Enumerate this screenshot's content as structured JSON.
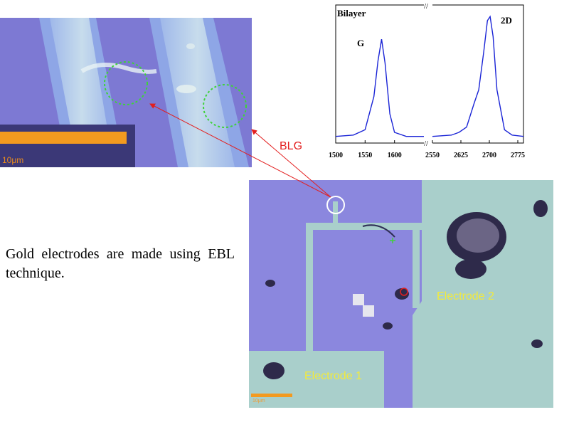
{
  "zoom_inset": {
    "scale_label": "10μm"
  },
  "raman_plot": {
    "tick_labels": [
      "1500",
      "1550",
      "1600",
      "2550",
      "2625",
      "2700",
      "2775"
    ],
    "annotations": {
      "sample": "Bilayer",
      "peak_g": "G",
      "peak_2d": "2D"
    }
  },
  "chart_data": {
    "type": "line",
    "title": "",
    "xlabel": "",
    "ylabel": "",
    "broken_x_axis": true,
    "x_segments": [
      [
        1500,
        1650
      ],
      [
        2550,
        2790
      ]
    ],
    "series": [
      {
        "x": [
          1500,
          1530,
          1550,
          1565,
          1572,
          1578,
          1584,
          1592,
          1600,
          1620,
          1650
        ],
        "y": [
          0.05,
          0.06,
          0.1,
          0.35,
          0.62,
          0.78,
          0.6,
          0.22,
          0.08,
          0.05,
          0.05
        ]
      },
      {
        "x": [
          2550,
          2600,
          2620,
          2640,
          2660,
          2672,
          2685,
          2695,
          2702,
          2710,
          2720,
          2740,
          2760,
          2790
        ],
        "y": [
          0.05,
          0.06,
          0.08,
          0.12,
          0.3,
          0.4,
          0.68,
          0.92,
          0.95,
          0.8,
          0.4,
          0.1,
          0.06,
          0.05
        ]
      }
    ]
  },
  "description": "Gold electrodes are made using EBL technique.",
  "main_image": {
    "electrode_1_label": "Electrode 1",
    "electrode_2_label": "Electrode 2",
    "scale_label": "10μm"
  },
  "annotation": {
    "blg_label": "BLG"
  },
  "colors": {
    "substrate": "#8b87de",
    "electrode": "#a9cfcb",
    "curve": "#1a24d6",
    "arrow": "#e31e1e",
    "label": "#f2ea3c",
    "scale_bar": "#f39a1f"
  }
}
